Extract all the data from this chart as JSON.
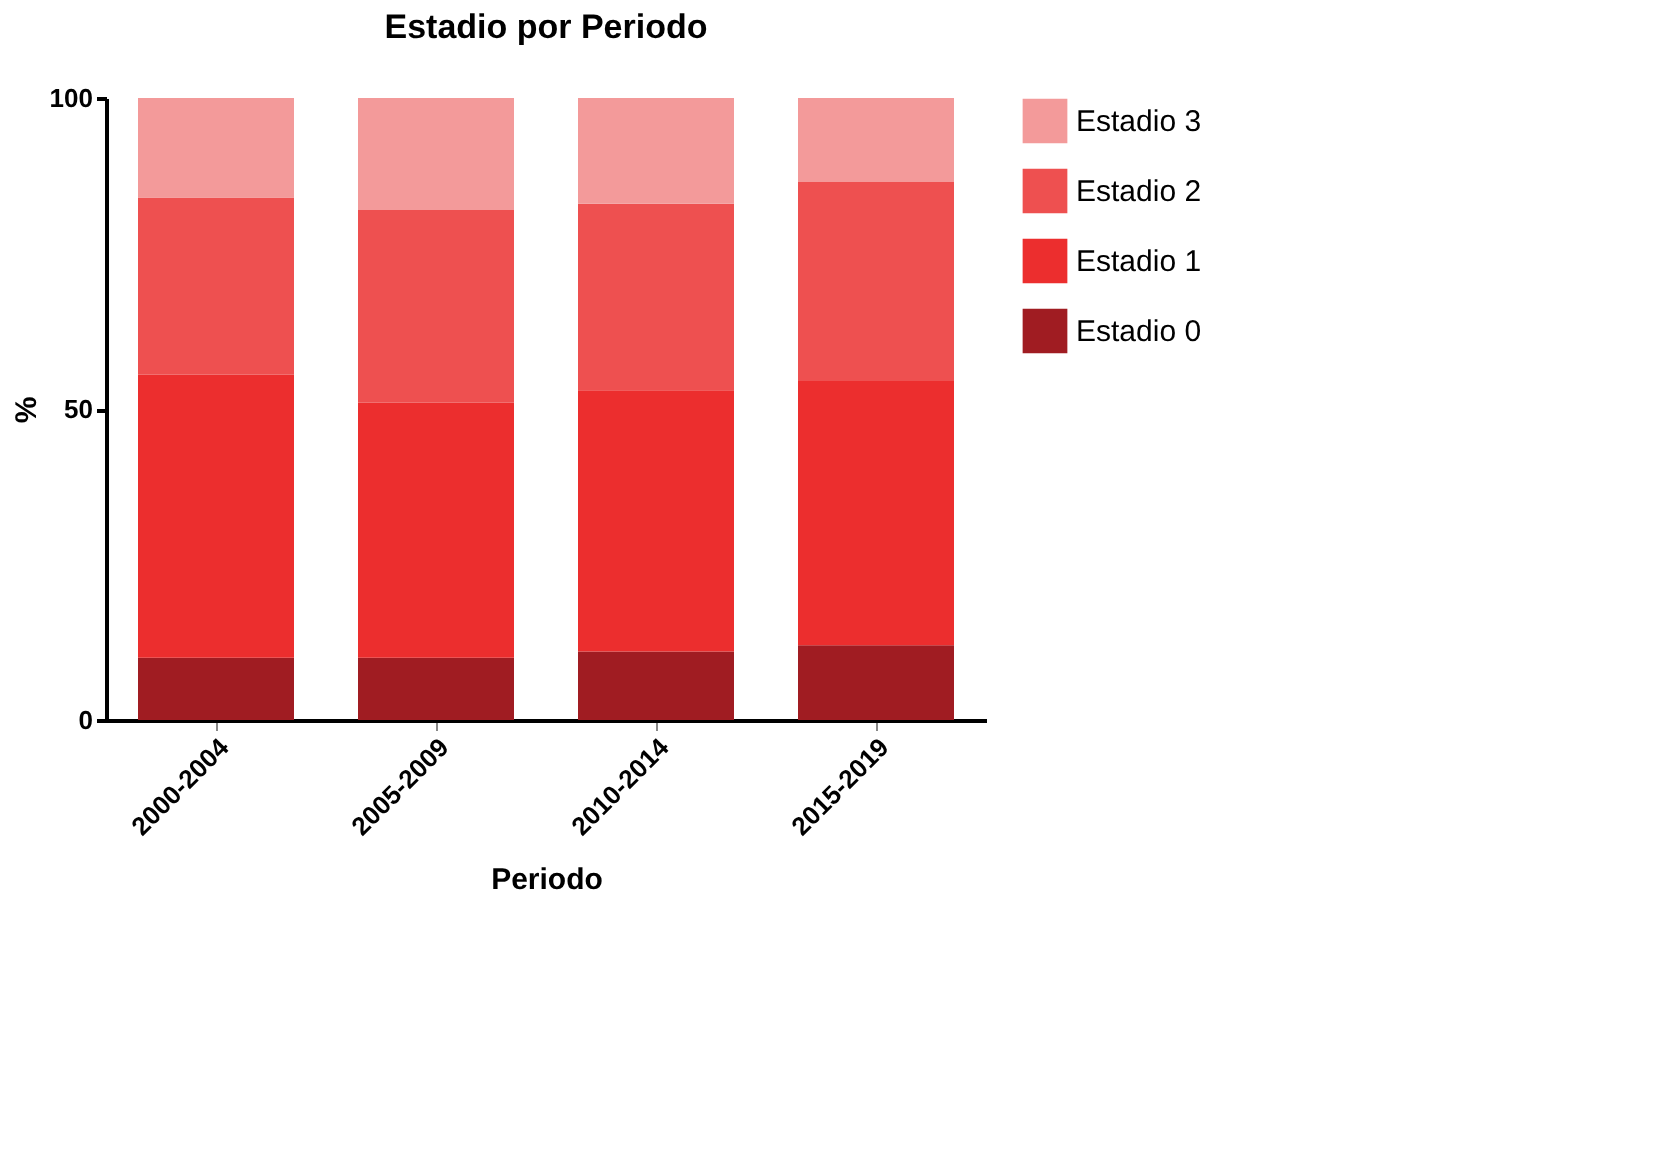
{
  "chart_data": {
    "type": "bar",
    "title": "Estadio por Periodo",
    "xlabel": "Periodo",
    "ylabel": "%",
    "categories": [
      "2000-2004",
      "2005-2009",
      "2010-2014",
      "2015-2019"
    ],
    "stacked": true,
    "ylim": [
      0,
      100
    ],
    "yticks": [
      0,
      50,
      100
    ],
    "grid": false,
    "legend": "right",
    "series": [
      {
        "name": "Estadio 0",
        "color": "#a01c22",
        "values": [
          10,
          10,
          11,
          12
        ]
      },
      {
        "name": "Estadio 1",
        "color": "#ec2e2e",
        "values": [
          45.5,
          41,
          42,
          42.5
        ]
      },
      {
        "name": "Estadio 2",
        "color": "#ee5050",
        "values": [
          28.5,
          31,
          30,
          32
        ]
      },
      {
        "name": "Estadio 3",
        "color": "#f39a9a",
        "values": [
          16,
          18,
          17,
          13.5
        ]
      }
    ]
  }
}
